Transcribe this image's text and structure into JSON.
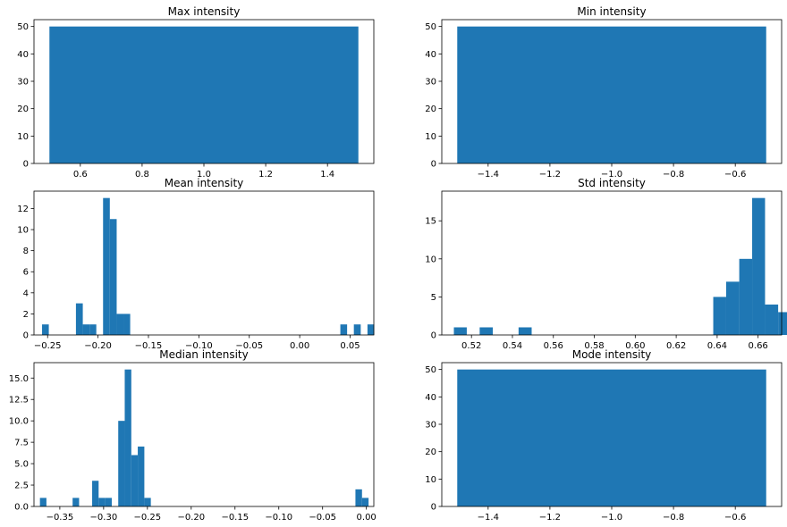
{
  "chart_data": [
    {
      "type": "bar",
      "title": "Max intensity",
      "xlim": [
        0.45,
        1.55
      ],
      "ylim": [
        0,
        52.5
      ],
      "xticks": [
        0.6,
        0.8,
        1.0,
        1.2,
        1.4
      ],
      "xtick_labels": [
        "0.6",
        "0.8",
        "1.0",
        "1.2",
        "1.4"
      ],
      "yticks": [
        0,
        10,
        20,
        30,
        40,
        50
      ],
      "ytick_labels": [
        "0",
        "10",
        "20",
        "30",
        "40",
        "50"
      ],
      "bars": [
        {
          "x0": 0.5,
          "x1": 1.5,
          "count": 50
        }
      ],
      "color": "#1f77b4"
    },
    {
      "type": "bar",
      "title": "Min intensity",
      "xlim": [
        -1.55,
        -0.45
      ],
      "ylim": [
        0,
        52.5
      ],
      "xticks": [
        -1.4,
        -1.2,
        -1.0,
        -0.8,
        -0.6
      ],
      "xtick_labels": [
        "−1.4",
        "−1.2",
        "−1.0",
        "−0.8",
        "−0.6"
      ],
      "yticks": [
        0,
        10,
        20,
        30,
        40,
        50
      ],
      "ytick_labels": [
        "0",
        "10",
        "20",
        "30",
        "40",
        "50"
      ],
      "bars": [
        {
          "x0": -1.5,
          "x1": -0.5,
          "count": 50
        }
      ],
      "color": "#1f77b4"
    },
    {
      "type": "bar",
      "title": "Mean intensity",
      "xlim": [
        -0.2635,
        0.0735
      ],
      "ylim": [
        0,
        13.65
      ],
      "xticks": [
        -0.25,
        -0.2,
        -0.15,
        -0.1,
        -0.05,
        0.0,
        0.05
      ],
      "xtick_labels": [
        "−0.25",
        "−0.20",
        "−0.15",
        "−0.10",
        "−0.05",
        "0.00",
        "0.05"
      ],
      "yticks": [
        0,
        2,
        4,
        6,
        8,
        10,
        12
      ],
      "ytick_labels": [
        "0",
        "2",
        "4",
        "6",
        "8",
        "10",
        "12"
      ],
      "bars": [
        {
          "x0": -0.2555,
          "x1": -0.2488,
          "count": 1
        },
        {
          "x0": -0.2219,
          "x1": -0.2151,
          "count": 3
        },
        {
          "x0": -0.2151,
          "x1": -0.2084,
          "count": 1
        },
        {
          "x0": -0.2084,
          "x1": -0.2017,
          "count": 1
        },
        {
          "x0": -0.195,
          "x1": -0.1883,
          "count": 13
        },
        {
          "x0": -0.1883,
          "x1": -0.1815,
          "count": 11
        },
        {
          "x0": -0.1815,
          "x1": -0.1748,
          "count": 2
        },
        {
          "x0": -0.1748,
          "x1": -0.1681,
          "count": 2
        },
        {
          "x0": 0.0403,
          "x1": 0.047,
          "count": 1
        },
        {
          "x0": 0.0537,
          "x1": 0.0605,
          "count": 1
        },
        {
          "x0": 0.0672,
          "x1": 0.0739,
          "count": 1
        }
      ],
      "color": "#1f77b4"
    },
    {
      "type": "bar",
      "title": "Std intensity",
      "xlim": [
        0.5055,
        0.6715
      ],
      "ylim": [
        0,
        18.9
      ],
      "xticks": [
        0.52,
        0.54,
        0.56,
        0.58,
        0.6,
        0.62,
        0.64,
        0.66
      ],
      "xtick_labels": [
        "0.52",
        "0.54",
        "0.56",
        "0.58",
        "0.60",
        "0.62",
        "0.64",
        "0.66"
      ],
      "yticks": [
        0,
        5,
        10,
        15
      ],
      "ytick_labels": [
        "0",
        "5",
        "10",
        "15"
      ],
      "bars": [
        {
          "x0": 0.5114,
          "x1": 0.5177,
          "count": 1
        },
        {
          "x0": 0.524,
          "x1": 0.5304,
          "count": 1
        },
        {
          "x0": 0.543,
          "x1": 0.5494,
          "count": 1
        },
        {
          "x0": 0.6381,
          "x1": 0.6444,
          "count": 5
        },
        {
          "x0": 0.6444,
          "x1": 0.6508,
          "count": 7
        },
        {
          "x0": 0.6508,
          "x1": 0.6571,
          "count": 10
        },
        {
          "x0": 0.6571,
          "x1": 0.6634,
          "count": 18
        },
        {
          "x0": 0.6634,
          "x1": 0.6698,
          "count": 4
        },
        {
          "x0": 0.6698,
          "x1": 0.6761,
          "count": 3
        }
      ],
      "color": "#1f77b4"
    },
    {
      "type": "bar",
      "title": "Median intensity",
      "xlim": [
        -0.3795,
        0.0085
      ],
      "ylim": [
        0,
        16.8
      ],
      "xticks": [
        -0.35,
        -0.3,
        -0.25,
        -0.2,
        -0.15,
        -0.1,
        -0.05,
        0.0
      ],
      "xtick_labels": [
        "−0.35",
        "−0.30",
        "−0.25",
        "−0.20",
        "−0.15",
        "−0.10",
        "−0.05",
        "0.00"
      ],
      "yticks": [
        0,
        2.5,
        5,
        7.5,
        10,
        12.5,
        15
      ],
      "ytick_labels": [
        "0.0",
        "2.5",
        "5.0",
        "7.5",
        "10.0",
        "12.5",
        "15.0"
      ],
      "bars": [
        {
          "x0": -0.3727,
          "x1": -0.3653,
          "count": 1
        },
        {
          "x0": -0.3354,
          "x1": -0.328,
          "count": 1
        },
        {
          "x0": -0.3131,
          "x1": -0.3057,
          "count": 3
        },
        {
          "x0": -0.3057,
          "x1": -0.2982,
          "count": 1
        },
        {
          "x0": -0.2982,
          "x1": -0.2907,
          "count": 1
        },
        {
          "x0": -0.2833,
          "x1": -0.2759,
          "count": 10
        },
        {
          "x0": -0.2759,
          "x1": -0.2684,
          "count": 16
        },
        {
          "x0": -0.2684,
          "x1": -0.261,
          "count": 6
        },
        {
          "x0": -0.261,
          "x1": -0.2535,
          "count": 7
        },
        {
          "x0": -0.2535,
          "x1": -0.2461,
          "count": 1
        },
        {
          "x0": -0.0125,
          "x1": -0.005,
          "count": 2
        },
        {
          "x0": -0.005,
          "x1": 0.0025,
          "count": 1
        }
      ],
      "color": "#1f77b4"
    },
    {
      "type": "bar",
      "title": "Mode intensity",
      "xlim": [
        -1.55,
        -0.45
      ],
      "ylim": [
        0,
        52.5
      ],
      "xticks": [
        -1.4,
        -1.2,
        -1.0,
        -0.8,
        -0.6
      ],
      "xtick_labels": [
        "−1.4",
        "−1.2",
        "−1.0",
        "−0.8",
        "−0.6"
      ],
      "yticks": [
        0,
        10,
        20,
        30,
        40,
        50
      ],
      "ytick_labels": [
        "0",
        "10",
        "20",
        "30",
        "40",
        "50"
      ],
      "bars": [
        {
          "x0": -1.5,
          "x1": -0.5,
          "count": 50
        }
      ],
      "color": "#1f77b4"
    }
  ]
}
